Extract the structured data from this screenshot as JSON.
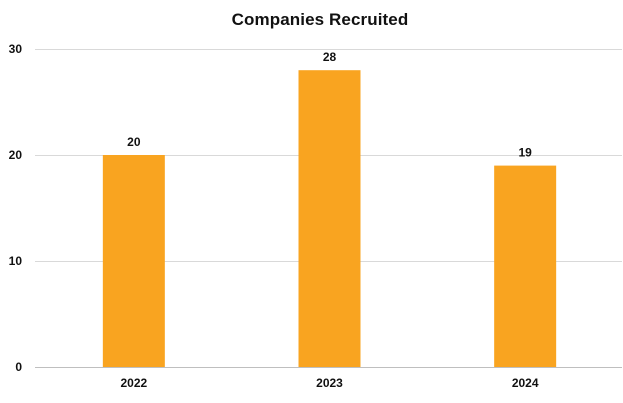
{
  "chart_data": {
    "type": "bar",
    "title": "Companies Recruited",
    "categories": [
      "2022",
      "2023",
      "2024"
    ],
    "values": [
      20,
      28,
      19
    ],
    "ylim": [
      0,
      30
    ],
    "yticks": [
      0,
      10,
      20,
      30
    ],
    "grid": true,
    "legend": "none",
    "colors": {
      "bar": "#F9A420",
      "grid": "#D9D9D9",
      "axis": "#BFBFBF"
    }
  }
}
